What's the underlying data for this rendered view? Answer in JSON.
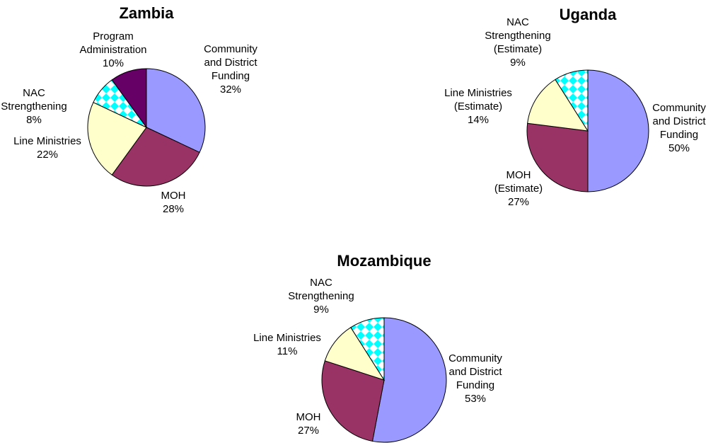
{
  "chart_data": [
    {
      "type": "pie",
      "title": "Zambia",
      "categories": [
        "Community and District Funding",
        "MOH",
        "Line Ministries",
        "NAC Strengthening",
        "Program Administration"
      ],
      "values": [
        32,
        28,
        22,
        8,
        10
      ],
      "value_labels": [
        "32%",
        "28%",
        "22%",
        "8%",
        "10%"
      ],
      "colors": [
        "#9999ff",
        "#993366",
        "#ffffcc",
        "#00ffff",
        "#660066"
      ],
      "patterned": [
        false,
        false,
        false,
        true,
        false
      ]
    },
    {
      "type": "pie",
      "title": "Uganda",
      "categories": [
        "Community and District Funding",
        "MOH (Estimate)",
        "Line Ministries (Estimate)",
        "NAC Strengthening (Estimate)"
      ],
      "values": [
        50,
        27,
        14,
        9
      ],
      "value_labels": [
        "50%",
        "27%",
        "14%",
        "9%"
      ],
      "colors": [
        "#9999ff",
        "#993366",
        "#ffffcc",
        "#00ffff"
      ],
      "patterned": [
        false,
        false,
        false,
        true
      ]
    },
    {
      "type": "pie",
      "title": "Mozambique",
      "categories": [
        "Community and District Funding",
        "MOH",
        "Line Ministries",
        "NAC Strengthening"
      ],
      "values": [
        53,
        27,
        11,
        9
      ],
      "value_labels": [
        "53%",
        "27%",
        "11%",
        "9%"
      ],
      "colors": [
        "#9999ff",
        "#993366",
        "#ffffcc",
        "#00ffff"
      ],
      "patterned": [
        false,
        false,
        false,
        true
      ]
    }
  ]
}
